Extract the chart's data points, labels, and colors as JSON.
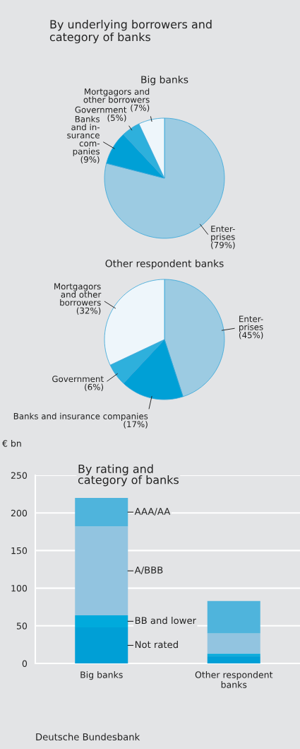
{
  "chart_data": [
    {
      "type": "pie",
      "title": "By underlying borrowers and\ncategory of banks",
      "subtitle": "Big banks",
      "categories": [
        "Enter-\nprises",
        "Banks\nand in-\nsurance\ncom-\npanies",
        "Government",
        "Mortgagors and\nother borrowers"
      ],
      "values": [
        79,
        9,
        5,
        7
      ],
      "value_labels": [
        "(79%)",
        "(9%)",
        "(5%)",
        "(7%)"
      ],
      "colors": [
        "#9ccbe2",
        "#00a0d6",
        "#2eb0dc",
        "#eef6fb"
      ]
    },
    {
      "type": "pie",
      "subtitle": "Other respondent banks",
      "categories": [
        "Enter-\nprises",
        "Banks and insurance companies",
        "Government",
        "Mortgagors\nand other\nborrowers"
      ],
      "values": [
        45,
        17,
        6,
        32
      ],
      "value_labels": [
        "(45%)",
        "(17%)",
        "(6%)",
        "(32%)"
      ],
      "colors": [
        "#9ccbe2",
        "#00a0d6",
        "#2eb0dc",
        "#eef6fb"
      ]
    },
    {
      "type": "bar",
      "stacked": true,
      "title": "By rating and\ncategory of banks",
      "ylabel": "€ bn",
      "categories": [
        "Big banks",
        "Other respondent\nbanks"
      ],
      "series": [
        {
          "name": "Not rated",
          "color": "#009fd6",
          "values": [
            48,
            10
          ]
        },
        {
          "name": "BB and lower",
          "color": "#00aadc",
          "values": [
            16,
            3
          ]
        },
        {
          "name": "A/BBB",
          "color": "#92c4e0",
          "values": [
            118,
            27
          ]
        },
        {
          "name": "AAA/AA",
          "color": "#4fb4dc",
          "values": [
            38,
            43
          ]
        }
      ],
      "ylim": [
        0,
        250
      ],
      "yticks": [
        0,
        50,
        100,
        150,
        200,
        250
      ],
      "grid": "y",
      "legend": false,
      "annotations": [
        "Deutsche Bundesbank"
      ]
    }
  ]
}
